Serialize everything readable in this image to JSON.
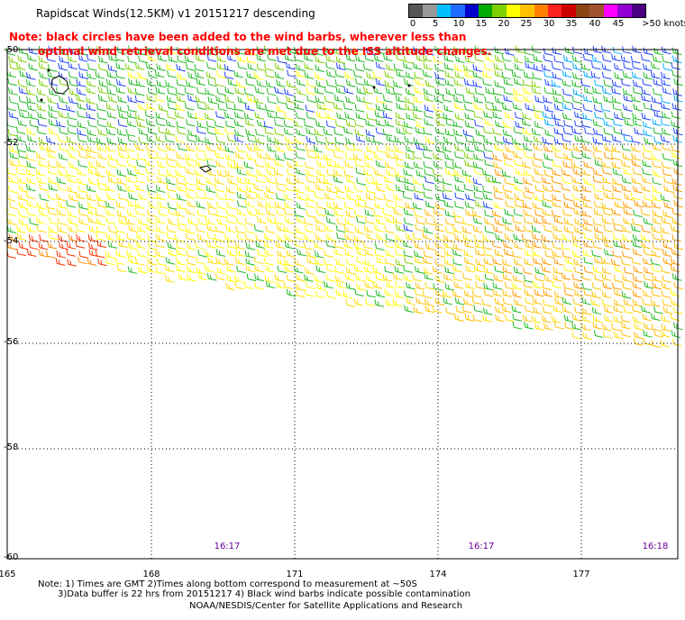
{
  "title": "Rapidscat Winds(12.5KM) v1 20151217 descending",
  "note": {
    "line1": "Note: black circles have been added to the wind barbs, wherever less than",
    "line2": "optimal wind retrieval conditions are met due to the ISS altitude changes."
  },
  "colorbar": {
    "colors": [
      "#555555",
      "#999999",
      "#00bfff",
      "#1e6bff",
      "#0000cc",
      "#00aa00",
      "#7fd000",
      "#ffff00",
      "#ffc000",
      "#ff8000",
      "#ff2020",
      "#cc0000",
      "#8b4513",
      "#a0522d",
      "#ff00ff",
      "#9400d3",
      "#4b0082"
    ],
    "labels": [
      "0",
      "5",
      "10",
      "15",
      "20",
      "25",
      "30",
      "35",
      "40",
      "45",
      ">50 knots"
    ]
  },
  "lat_labels": [
    "-50",
    "-52",
    "-54",
    "-56",
    "-58",
    "-60"
  ],
  "lon_labels": [
    "165",
    "168",
    "171",
    "174",
    "177"
  ],
  "time_labels": [
    "16:17",
    "16:17",
    "16:18"
  ],
  "footer": {
    "line1": "Note: 1) Times are GMT 2)Times along bottom correspond to measurement at ~50S",
    "line2": "3)Data buffer is 22 hrs from 20151217 4) Black wind barbs indicate possible contamination",
    "line3": "NOAA/NESDIS/Center for Satellite Applications and Research"
  }
}
